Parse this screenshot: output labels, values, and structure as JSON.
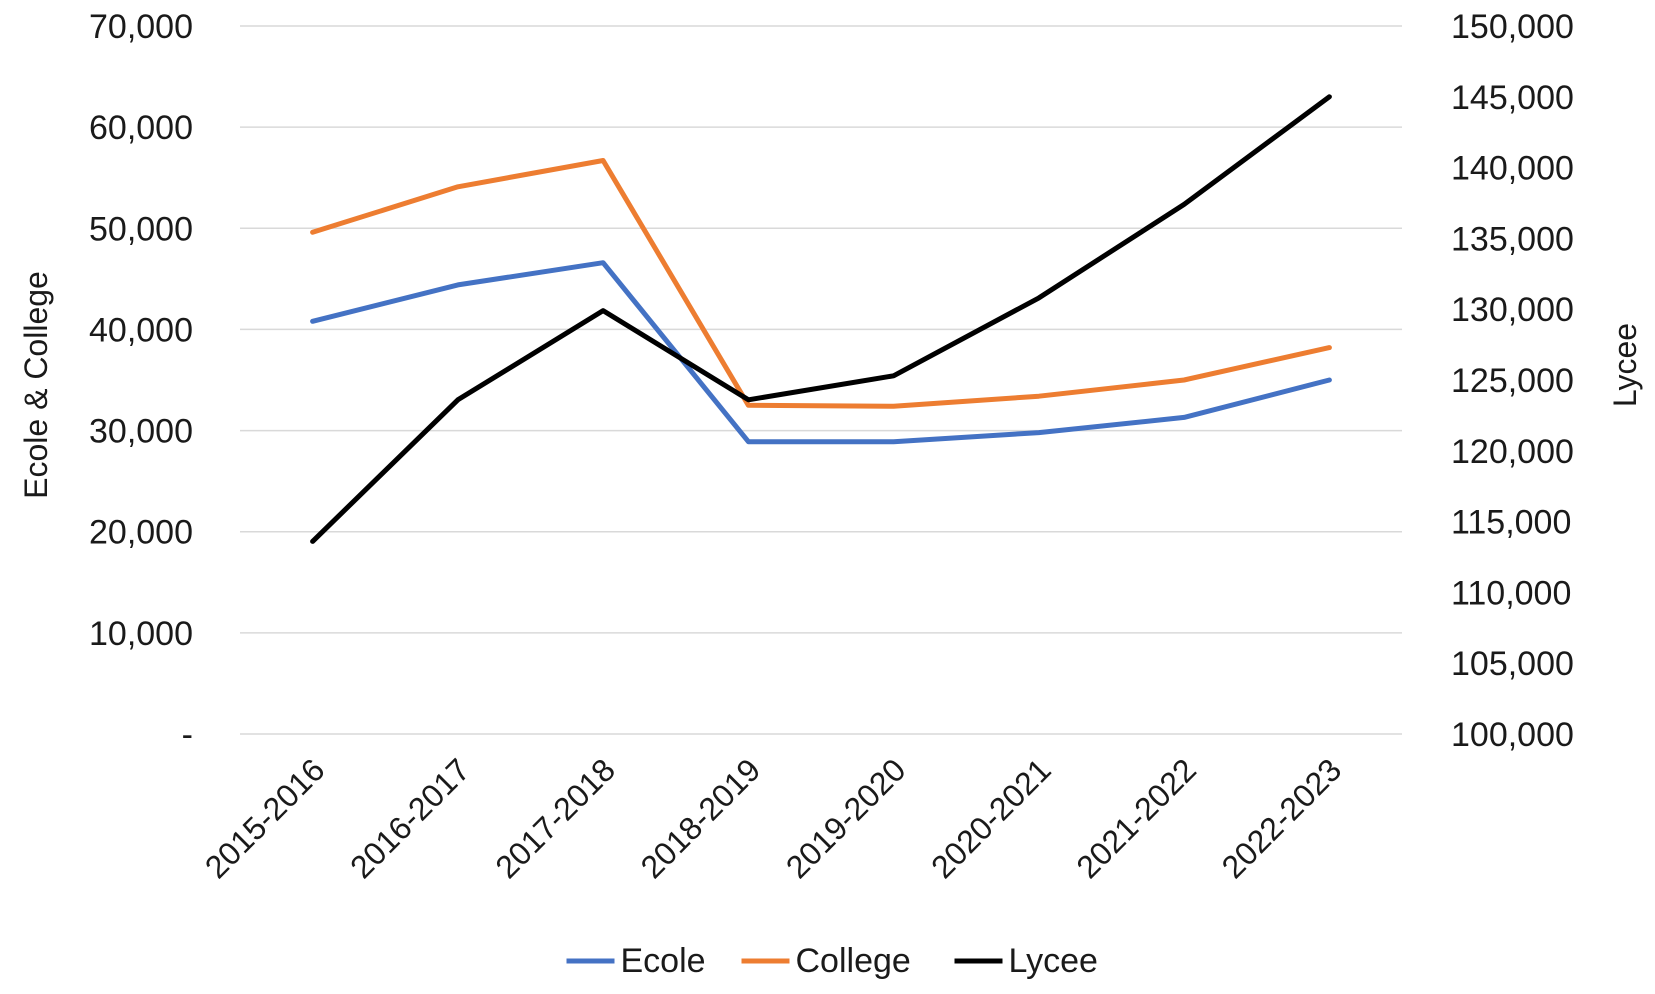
{
  "chart_data": {
    "type": "line",
    "categories": [
      "2015-2016",
      "2016-2017",
      "2017-2018",
      "2018-2019",
      "2019-2020",
      "2020-2021",
      "2021-2022",
      "2022-2023"
    ],
    "series": [
      {
        "name": "Ecole",
        "axis": "left",
        "color": "#4472C4",
        "values": [
          40800,
          44400,
          46600,
          28900,
          28900,
          29800,
          31300,
          35000
        ]
      },
      {
        "name": "College",
        "axis": "left",
        "color": "#ED7D31",
        "values": [
          49600,
          54100,
          56700,
          32500,
          32400,
          33400,
          35000,
          38200
        ]
      },
      {
        "name": "Lycee",
        "axis": "right",
        "color": "#000000",
        "values": [
          113600,
          123600,
          129900,
          123600,
          125300,
          130800,
          137400,
          145000
        ]
      }
    ],
    "y_left": {
      "label": "Ecole & College",
      "range": [
        0,
        70000
      ],
      "ticks": [
        0,
        10000,
        20000,
        30000,
        40000,
        50000,
        60000,
        70000
      ],
      "tick_labels": [
        "-",
        "10,000",
        "20,000",
        "30,000",
        "40,000",
        "50,000",
        "60,000",
        "70,000"
      ]
    },
    "y_right": {
      "label": "Lycee",
      "range": [
        100000,
        150000
      ],
      "ticks": [
        100000,
        105000,
        110000,
        115000,
        120000,
        125000,
        130000,
        135000,
        140000,
        145000,
        150000
      ],
      "tick_labels": [
        "100,000",
        "105,000",
        "110,000",
        "115,000",
        "120,000",
        "125,000",
        "130,000",
        "135,000",
        "140,000",
        "145,000",
        "150,000"
      ]
    },
    "grid": true,
    "legend_position": "bottom"
  }
}
